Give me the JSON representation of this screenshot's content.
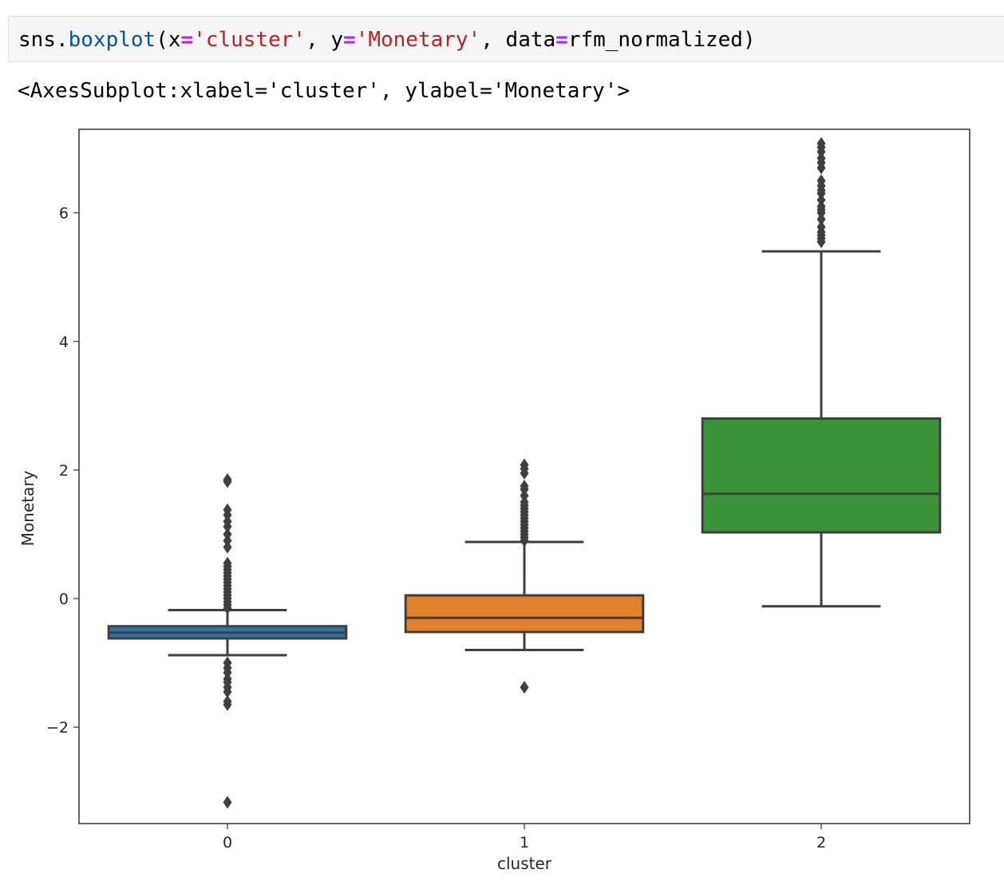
{
  "code_cell": {
    "tokens": [
      {
        "text": "sns.",
        "kind": "plain"
      },
      {
        "text": "boxplot",
        "kind": "fn"
      },
      {
        "text": "(x",
        "kind": "plain"
      },
      {
        "text": "=",
        "kind": "op"
      },
      {
        "text": "'cluster'",
        "kind": "str"
      },
      {
        "text": ", y",
        "kind": "plain"
      },
      {
        "text": "=",
        "kind": "op"
      },
      {
        "text": "'Monetary'",
        "kind": "str"
      },
      {
        "text": ", data",
        "kind": "plain"
      },
      {
        "text": "=",
        "kind": "op"
      },
      {
        "text": "rfm_normalized)",
        "kind": "plain"
      }
    ]
  },
  "output": {
    "repr": "<AxesSubplot:xlabel='cluster', ylabel='Monetary'>"
  },
  "chart_data": {
    "type": "boxplot",
    "xlabel": "cluster",
    "ylabel": "Monetary",
    "categories": [
      "0",
      "1",
      "2"
    ],
    "ylim": [
      -3.5,
      7.3
    ],
    "yticks": [
      -2,
      0,
      2,
      4,
      6
    ],
    "yticklabels": [
      "−2",
      "0",
      "2",
      "4",
      "6"
    ],
    "grid": false,
    "boxes": [
      {
        "category": "0",
        "color": "#3274a1",
        "whisker_low": -0.88,
        "q1": -0.62,
        "median": -0.53,
        "q3": -0.43,
        "whisker_high": -0.18,
        "outliers": [
          -3.17,
          -1.65,
          -1.6,
          -1.45,
          -1.38,
          -1.3,
          -1.25,
          -1.15,
          -1.08,
          -1.0,
          -0.15,
          -0.1,
          -0.05,
          0.0,
          0.05,
          0.1,
          0.15,
          0.2,
          0.25,
          0.3,
          0.35,
          0.4,
          0.45,
          0.5,
          0.55,
          0.8,
          0.9,
          1.0,
          1.12,
          1.2,
          1.3,
          1.38,
          1.82,
          1.85
        ]
      },
      {
        "category": "1",
        "color": "#e1812c",
        "whisker_low": -0.8,
        "q1": -0.52,
        "median": -0.3,
        "q3": 0.05,
        "whisker_high": 0.88,
        "outliers": [
          -1.38,
          0.9,
          0.95,
          1.0,
          1.05,
          1.1,
          1.15,
          1.2,
          1.25,
          1.3,
          1.35,
          1.4,
          1.45,
          1.5,
          1.6,
          1.7,
          1.75,
          1.95,
          2.02,
          2.08
        ]
      },
      {
        "category": "2",
        "color": "#3a923a",
        "whisker_low": -0.12,
        "q1": 1.03,
        "median": 1.63,
        "q3": 2.8,
        "whisker_high": 5.4,
        "outliers": [
          5.55,
          5.6,
          5.65,
          5.7,
          5.78,
          5.9,
          6.0,
          6.05,
          6.1,
          6.2,
          6.3,
          6.35,
          6.42,
          6.5,
          6.7,
          6.78,
          6.85,
          6.95,
          7.02,
          7.08
        ]
      }
    ]
  }
}
